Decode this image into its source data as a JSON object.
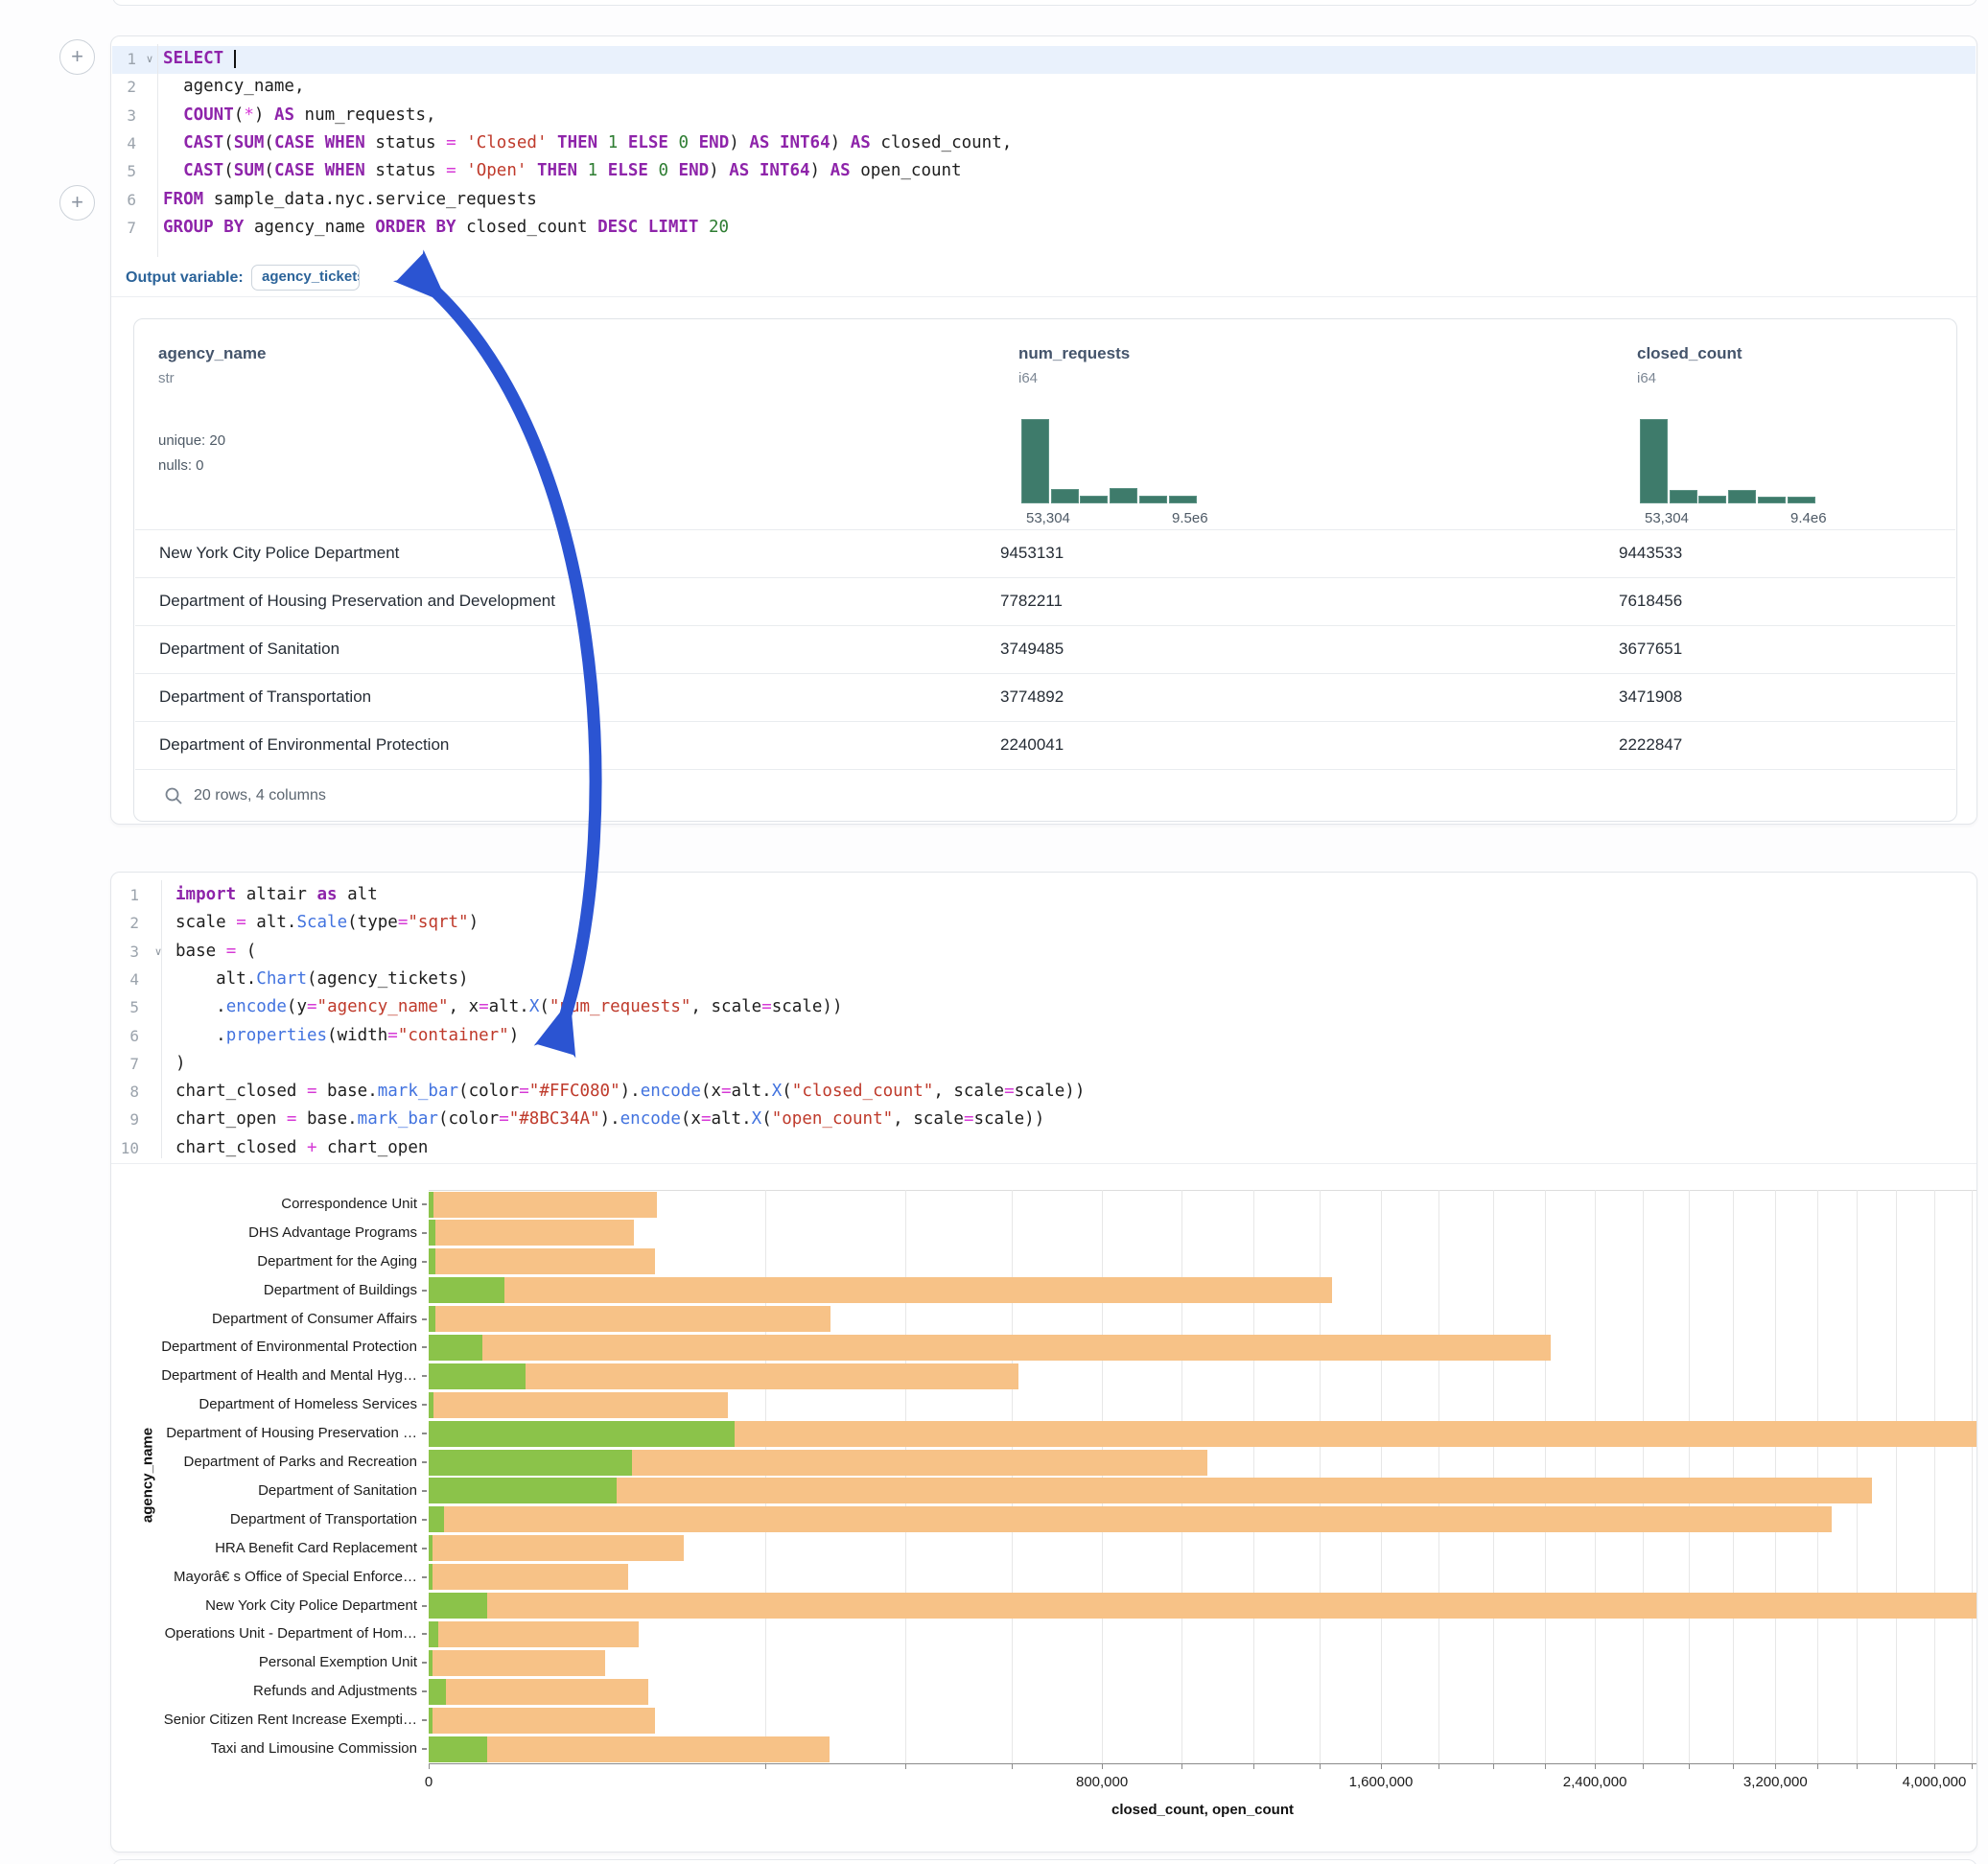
{
  "plus_buttons": {
    "label": "+"
  },
  "sql_cell": {
    "lines": [
      {
        "n": "1",
        "fold": true,
        "active": true,
        "cursor": true,
        "tokens": [
          [
            "k",
            "SELECT"
          ],
          [
            "t",
            " "
          ]
        ]
      },
      {
        "n": "2",
        "tokens": [
          [
            "t",
            "  agency_name,"
          ]
        ]
      },
      {
        "n": "3",
        "tokens": [
          [
            "t",
            "  "
          ],
          [
            "k",
            "COUNT"
          ],
          [
            "t",
            "("
          ],
          [
            "o",
            "*"
          ],
          [
            "t",
            ") "
          ],
          [
            "k",
            "AS"
          ],
          [
            "t",
            " num_requests,"
          ]
        ]
      },
      {
        "n": "4",
        "tokens": [
          [
            "t",
            "  "
          ],
          [
            "k",
            "CAST"
          ],
          [
            "t",
            "("
          ],
          [
            "k",
            "SUM"
          ],
          [
            "t",
            "("
          ],
          [
            "k",
            "CASE"
          ],
          [
            "t",
            " "
          ],
          [
            "k",
            "WHEN"
          ],
          [
            "t",
            " status "
          ],
          [
            "o",
            "="
          ],
          [
            "t",
            " "
          ],
          [
            "s",
            "'Closed'"
          ],
          [
            "t",
            " "
          ],
          [
            "k",
            "THEN"
          ],
          [
            "t",
            " "
          ],
          [
            "n",
            "1"
          ],
          [
            "t",
            " "
          ],
          [
            "k",
            "ELSE"
          ],
          [
            "t",
            " "
          ],
          [
            "n",
            "0"
          ],
          [
            "t",
            " "
          ],
          [
            "k",
            "END"
          ],
          [
            "t",
            ") "
          ],
          [
            "k",
            "AS"
          ],
          [
            "t",
            " "
          ],
          [
            "k",
            "INT64"
          ],
          [
            "t",
            ") "
          ],
          [
            "k",
            "AS"
          ],
          [
            "t",
            " closed_count,"
          ]
        ]
      },
      {
        "n": "5",
        "tokens": [
          [
            "t",
            "  "
          ],
          [
            "k",
            "CAST"
          ],
          [
            "t",
            "("
          ],
          [
            "k",
            "SUM"
          ],
          [
            "t",
            "("
          ],
          [
            "k",
            "CASE"
          ],
          [
            "t",
            " "
          ],
          [
            "k",
            "WHEN"
          ],
          [
            "t",
            " status "
          ],
          [
            "o",
            "="
          ],
          [
            "t",
            " "
          ],
          [
            "s",
            "'Open'"
          ],
          [
            "t",
            " "
          ],
          [
            "k",
            "THEN"
          ],
          [
            "t",
            " "
          ],
          [
            "n",
            "1"
          ],
          [
            "t",
            " "
          ],
          [
            "k",
            "ELSE"
          ],
          [
            "t",
            " "
          ],
          [
            "n",
            "0"
          ],
          [
            "t",
            " "
          ],
          [
            "k",
            "END"
          ],
          [
            "t",
            ") "
          ],
          [
            "k",
            "AS"
          ],
          [
            "t",
            " "
          ],
          [
            "k",
            "INT64"
          ],
          [
            "t",
            ") "
          ],
          [
            "k",
            "AS"
          ],
          [
            "t",
            " open_count"
          ]
        ]
      },
      {
        "n": "6",
        "tokens": [
          [
            "k",
            "FROM"
          ],
          [
            "t",
            " sample_data.nyc.service_requests"
          ]
        ]
      },
      {
        "n": "7",
        "tokens": [
          [
            "k",
            "GROUP BY"
          ],
          [
            "t",
            " agency_name "
          ],
          [
            "k",
            "ORDER BY"
          ],
          [
            "t",
            " closed_count "
          ],
          [
            "k",
            "DESC"
          ],
          [
            "t",
            " "
          ],
          [
            "k",
            "LIMIT"
          ],
          [
            "t",
            " "
          ],
          [
            "n",
            "20"
          ]
        ]
      }
    ],
    "output_variable_label": "Output variable:",
    "output_variable_value": "agency_tickets"
  },
  "table": {
    "columns": [
      {
        "name": "agency_name",
        "type": "str",
        "stats": [
          "unique: 20",
          "nulls: 0"
        ]
      },
      {
        "name": "num_requests",
        "type": "i64",
        "hist": [
          1,
          0.17,
          0.095,
          0.18,
          0.09,
          0.09
        ],
        "min_label": "53,304",
        "max_label": "9.5e6"
      },
      {
        "name": "closed_count",
        "type": "i64",
        "hist": [
          1,
          0.16,
          0.09,
          0.16,
          0.08,
          0.08
        ],
        "min_label": "53,304",
        "max_label": "9.4e6"
      }
    ],
    "rows": [
      [
        "New York City Police Department",
        "9453131",
        "9443533"
      ],
      [
        "Department of Housing Preservation and Development",
        "7782211",
        "7618456"
      ],
      [
        "Department of Sanitation",
        "3749485",
        "3677651"
      ],
      [
        "Department of Transportation",
        "3774892",
        "3471908"
      ],
      [
        "Department of Environmental Protection",
        "2240041",
        "2222847"
      ]
    ],
    "footer": "20 rows, 4 columns"
  },
  "python_cell": {
    "lines": [
      {
        "n": "1",
        "tokens": [
          [
            "k",
            "import"
          ],
          [
            "t",
            " altair "
          ],
          [
            "k",
            "as"
          ],
          [
            "t",
            " alt"
          ]
        ]
      },
      {
        "n": "2",
        "tokens": [
          [
            "t",
            "scale "
          ],
          [
            "o",
            "="
          ],
          [
            "t",
            " alt."
          ],
          [
            "m",
            "Scale"
          ],
          [
            "t",
            "(type"
          ],
          [
            "o",
            "="
          ],
          [
            "s",
            "\"sqrt\""
          ],
          [
            "t",
            ")"
          ]
        ]
      },
      {
        "n": "3",
        "fold": true,
        "tokens": [
          [
            "t",
            "base "
          ],
          [
            "o",
            "="
          ],
          [
            "t",
            " ("
          ]
        ]
      },
      {
        "n": "4",
        "tokens": [
          [
            "t",
            "    alt."
          ],
          [
            "m",
            "Chart"
          ],
          [
            "t",
            "(agency_tickets)"
          ]
        ]
      },
      {
        "n": "5",
        "tokens": [
          [
            "t",
            "    ."
          ],
          [
            "m",
            "encode"
          ],
          [
            "t",
            "(y"
          ],
          [
            "o",
            "="
          ],
          [
            "s",
            "\"agency_name\""
          ],
          [
            "t",
            ", x"
          ],
          [
            "o",
            "="
          ],
          [
            "t",
            "alt."
          ],
          [
            "m",
            "X"
          ],
          [
            "t",
            "("
          ],
          [
            "s",
            "\"num_requests\""
          ],
          [
            "t",
            ", scale"
          ],
          [
            "o",
            "="
          ],
          [
            "t",
            "scale))"
          ]
        ]
      },
      {
        "n": "6",
        "tokens": [
          [
            "t",
            "    ."
          ],
          [
            "m",
            "properties"
          ],
          [
            "t",
            "(width"
          ],
          [
            "o",
            "="
          ],
          [
            "s",
            "\"container\""
          ],
          [
            "t",
            ")"
          ]
        ]
      },
      {
        "n": "7",
        "tokens": [
          [
            "t",
            ")"
          ]
        ]
      },
      {
        "n": "8",
        "tokens": [
          [
            "t",
            "chart_closed "
          ],
          [
            "o",
            "="
          ],
          [
            "t",
            " base."
          ],
          [
            "m",
            "mark_bar"
          ],
          [
            "t",
            "(color"
          ],
          [
            "o",
            "="
          ],
          [
            "s",
            "\"#FFC080\""
          ],
          [
            "t",
            ")."
          ],
          [
            "m",
            "encode"
          ],
          [
            "t",
            "(x"
          ],
          [
            "o",
            "="
          ],
          [
            "t",
            "alt."
          ],
          [
            "m",
            "X"
          ],
          [
            "t",
            "("
          ],
          [
            "s",
            "\"closed_count\""
          ],
          [
            "t",
            ", scale"
          ],
          [
            "o",
            "="
          ],
          [
            "t",
            "scale))"
          ]
        ]
      },
      {
        "n": "9",
        "tokens": [
          [
            "t",
            "chart_open "
          ],
          [
            "o",
            "="
          ],
          [
            "t",
            " base."
          ],
          [
            "m",
            "mark_bar"
          ],
          [
            "t",
            "(color"
          ],
          [
            "o",
            "="
          ],
          [
            "s",
            "\"#8BC34A\""
          ],
          [
            "t",
            ")."
          ],
          [
            "m",
            "encode"
          ],
          [
            "t",
            "(x"
          ],
          [
            "o",
            "="
          ],
          [
            "t",
            "alt."
          ],
          [
            "m",
            "X"
          ],
          [
            "t",
            "("
          ],
          [
            "s",
            "\"open_count\""
          ],
          [
            "t",
            ", scale"
          ],
          [
            "o",
            "="
          ],
          [
            "t",
            "scale))"
          ]
        ]
      },
      {
        "n": "10",
        "tokens": [
          [
            "t",
            "chart_closed "
          ],
          [
            "o",
            "+"
          ],
          [
            "t",
            " chart_open"
          ]
        ]
      }
    ]
  },
  "chart_data": {
    "type": "bar",
    "orientation": "horizontal",
    "x_scale": "sqrt",
    "overlay_note": "open_count bars drawn over closed_count bars, both starting at 0",
    "categories": [
      "Correspondence Unit",
      "DHS Advantage Programs",
      "Department for the Aging",
      "Department of Buildings",
      "Department of Consumer Affairs",
      "Department of Environmental Protection",
      "Department of Health and Mental Hyg…",
      "Department of Homeless Services",
      "Department of Housing Preservation …",
      "Department of Parks and Recreation",
      "Department of Sanitation",
      "Department of Transportation",
      "HRA Benefit Card Replacement",
      "Mayorâ€ s Office of Special Enforce…",
      "New York City Police Department",
      "Operations Unit - Department of Hom…",
      "Personal Exemption Unit",
      "Refunds and Adjustments",
      "Senior Citizen Rent Increase Exempti…",
      "Taxi and Limousine Commission"
    ],
    "series": [
      {
        "name": "closed_count",
        "color": "#F7C287",
        "values": [
          92000,
          74000,
          90000,
          1440000,
          285000,
          2222847,
          613000,
          158000,
          7618456,
          1070000,
          3677651,
          3471908,
          115000,
          70000,
          9443533,
          78000,
          55000,
          85000,
          90000,
          283000
        ]
      },
      {
        "name": "open_count",
        "color": "#8BC34A",
        "values": [
          40,
          90,
          90,
          10000,
          90,
          5000,
          16500,
          40,
          165000,
          73000,
          62000,
          400,
          30,
          30,
          6100,
          150,
          30,
          500,
          30,
          6000
        ]
      }
    ],
    "xlabel": "closed_count, open_count",
    "ylabel": "agency_name",
    "x_tick_values": [
      0,
      800000,
      1600000,
      2400000,
      3200000,
      4000000
    ],
    "x_tick_labels": [
      "0",
      "800,000",
      "1,600,000",
      "2,400,000",
      "3,200,000",
      "4,000,000"
    ],
    "minor_tick_step": 200000,
    "x_clip_max": 4300000,
    "grid": true,
    "legend": "none"
  },
  "icons": {
    "search": "search-icon",
    "plus": "plus-icon",
    "fold": "chevron-down-icon"
  },
  "colors": {
    "closed_bar": "#F7C287",
    "open_bar": "#8BC34A",
    "histogram": "#3e7b6b",
    "arrow": "#2b54d2",
    "keyword": "#8e24aa",
    "string": "#bf3a2b",
    "number": "#2e7d32",
    "method": "#4273df",
    "operator": "#d63ad6",
    "outvar_blue": "#2b6399"
  }
}
